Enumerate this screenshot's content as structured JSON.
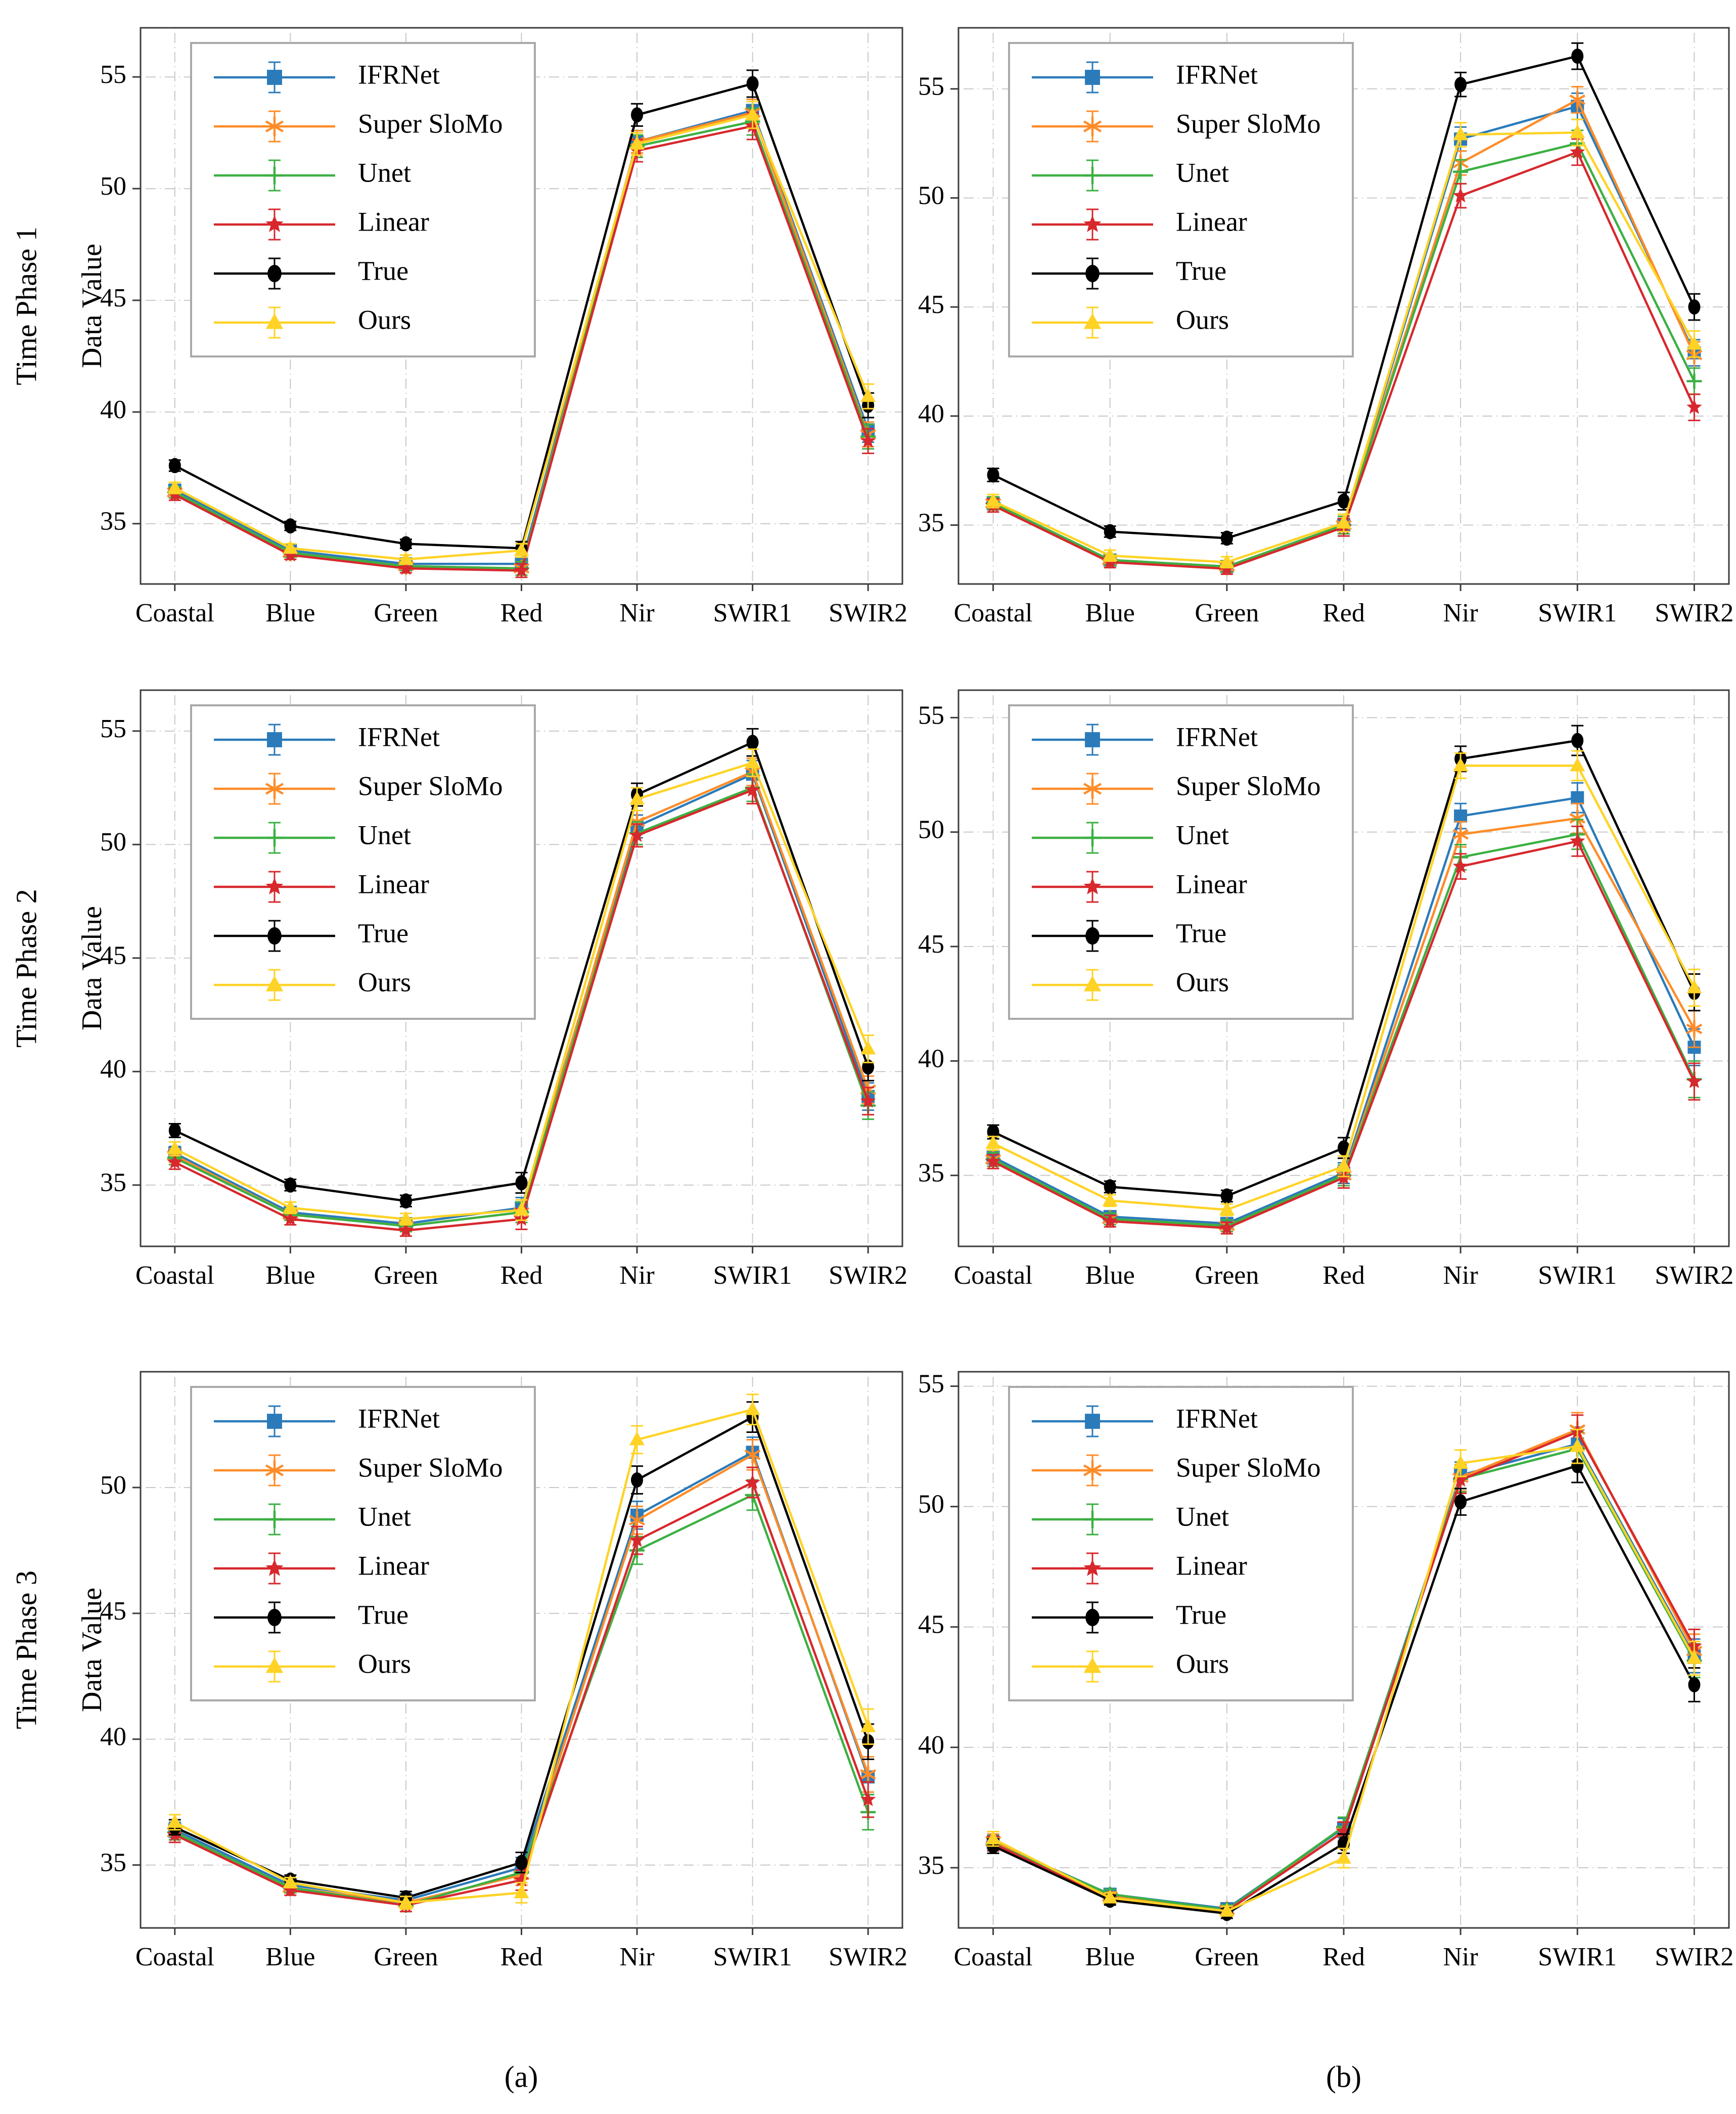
{
  "captions": {
    "a": "(a)",
    "b": "(b)"
  },
  "rows": [
    {
      "label": "Time Phase 1"
    },
    {
      "label": "Time Phase 2"
    },
    {
      "label": "Time Phase 3"
    }
  ],
  "series_meta": [
    {
      "name": "IFRNet",
      "color": "#2b7bba",
      "marker": "square"
    },
    {
      "name": "Super SloMo",
      "color": "#ff8c28",
      "marker": "asterisk"
    },
    {
      "name": "Unet",
      "color": "#3cb043",
      "marker": "plus"
    },
    {
      "name": "Linear",
      "color": "#d7282d",
      "marker": "star"
    },
    {
      "name": "True",
      "color": "#000000",
      "marker": "circle"
    },
    {
      "name": "Ours",
      "color": "#ffd325",
      "marker": "triangle"
    }
  ],
  "chart_data": [
    {
      "id": "a1",
      "type": "line",
      "row_label": "Time Phase 1",
      "column": "a",
      "ylabel": "Data Value",
      "categories": [
        "Coastal",
        "Blue",
        "Green",
        "Red",
        "Nir",
        "SWIR1",
        "SWIR2"
      ],
      "yticks": [
        35,
        40,
        45,
        50,
        55
      ],
      "ylim": [
        32.3,
        57.2
      ],
      "err": [
        0.25,
        0.2,
        0.2,
        0.3,
        0.5,
        0.6,
        0.55
      ],
      "series": [
        {
          "name": "IFRNet",
          "values": [
            36.5,
            33.8,
            33.2,
            33.2,
            52.1,
            53.5,
            39.2
          ]
        },
        {
          "name": "Super SloMo",
          "values": [
            36.4,
            33.7,
            33.1,
            33.0,
            52.1,
            53.4,
            39.0
          ]
        },
        {
          "name": "Unet",
          "values": [
            36.4,
            33.7,
            33.1,
            33.0,
            51.9,
            53.0,
            38.9
          ]
        },
        {
          "name": "Linear",
          "values": [
            36.3,
            33.6,
            33.0,
            32.9,
            51.7,
            52.8,
            38.7
          ]
        },
        {
          "name": "True",
          "values": [
            37.6,
            34.9,
            34.1,
            33.9,
            53.3,
            54.7,
            40.3
          ]
        },
        {
          "name": "Ours",
          "values": [
            36.6,
            33.9,
            33.4,
            33.8,
            52.0,
            53.3,
            40.7
          ]
        }
      ]
    },
    {
      "id": "b1",
      "type": "line",
      "row_label": "Time Phase 1",
      "column": "b",
      "ylabel": "",
      "categories": [
        "Coastal",
        "Blue",
        "Green",
        "Red",
        "Nir",
        "SWIR1",
        "SWIR2"
      ],
      "yticks": [
        35,
        40,
        45,
        50,
        55
      ],
      "ylim": [
        32.3,
        57.8
      ],
      "err": [
        0.3,
        0.25,
        0.25,
        0.4,
        0.55,
        0.6,
        0.6
      ],
      "series": [
        {
          "name": "IFRNet",
          "values": [
            36.0,
            33.4,
            33.1,
            35.0,
            52.7,
            54.2,
            42.9
          ]
        },
        {
          "name": "Super SloMo",
          "values": [
            36.0,
            33.4,
            33.1,
            35.0,
            51.6,
            54.5,
            42.8
          ]
        },
        {
          "name": "Unet",
          "values": [
            36.0,
            33.4,
            33.1,
            35.0,
            51.2,
            52.5,
            41.6
          ]
        },
        {
          "name": "Linear",
          "values": [
            35.9,
            33.3,
            33.0,
            34.9,
            50.1,
            52.1,
            40.4
          ]
        },
        {
          "name": "True",
          "values": [
            37.3,
            34.7,
            34.4,
            36.1,
            55.2,
            56.5,
            45.0
          ]
        },
        {
          "name": "Ours",
          "values": [
            36.1,
            33.6,
            33.3,
            35.1,
            52.9,
            53.0,
            43.3
          ]
        }
      ]
    },
    {
      "id": "a2",
      "type": "line",
      "row_label": "Time Phase 2",
      "column": "a",
      "ylabel": "Data Value",
      "categories": [
        "Coastal",
        "Blue",
        "Green",
        "Red",
        "Nir",
        "SWIR1",
        "SWIR2"
      ],
      "yticks": [
        35,
        40,
        45,
        50,
        55
      ],
      "ylim": [
        32.3,
        56.8
      ],
      "err": [
        0.3,
        0.25,
        0.25,
        0.45,
        0.5,
        0.6,
        0.6
      ],
      "series": [
        {
          "name": "IFRNet",
          "values": [
            36.4,
            33.8,
            33.3,
            34.0,
            50.8,
            53.1,
            38.9
          ]
        },
        {
          "name": "Super SloMo",
          "values": [
            36.3,
            33.7,
            33.2,
            33.8,
            51.0,
            53.2,
            39.2
          ]
        },
        {
          "name": "Unet",
          "values": [
            36.2,
            33.7,
            33.2,
            33.8,
            50.5,
            52.5,
            38.5
          ]
        },
        {
          "name": "Linear",
          "values": [
            36.0,
            33.5,
            33.0,
            33.5,
            50.4,
            52.4,
            38.7
          ]
        },
        {
          "name": "True",
          "values": [
            37.4,
            35.0,
            34.3,
            35.1,
            52.2,
            54.5,
            40.2
          ]
        },
        {
          "name": "Ours",
          "values": [
            36.6,
            34.0,
            33.5,
            33.9,
            52.0,
            53.6,
            41.0
          ]
        }
      ]
    },
    {
      "id": "b2",
      "type": "line",
      "row_label": "Time Phase 2",
      "column": "b",
      "ylabel": "",
      "categories": [
        "Coastal",
        "Blue",
        "Green",
        "Red",
        "Nir",
        "SWIR1",
        "SWIR2"
      ],
      "yticks": [
        35,
        40,
        45,
        50,
        55
      ],
      "ylim": [
        31.9,
        56.2
      ],
      "err": [
        0.3,
        0.25,
        0.25,
        0.45,
        0.55,
        0.65,
        0.8
      ],
      "series": [
        {
          "name": "IFRNet",
          "values": [
            35.8,
            33.2,
            32.9,
            35.1,
            50.7,
            51.5,
            40.6
          ]
        },
        {
          "name": "Super SloMo",
          "values": [
            35.7,
            33.1,
            32.8,
            35.0,
            49.9,
            50.6,
            41.4
          ]
        },
        {
          "name": "Unet",
          "values": [
            35.7,
            33.1,
            32.8,
            35.0,
            48.9,
            49.9,
            39.2
          ]
        },
        {
          "name": "Linear",
          "values": [
            35.6,
            33.0,
            32.7,
            34.9,
            48.5,
            49.6,
            39.1
          ]
        },
        {
          "name": "True",
          "values": [
            36.9,
            34.5,
            34.1,
            36.2,
            53.2,
            54.0,
            43.0
          ]
        },
        {
          "name": "Ours",
          "values": [
            36.4,
            33.9,
            33.5,
            35.4,
            52.9,
            52.9,
            43.2
          ]
        }
      ]
    },
    {
      "id": "a3",
      "type": "line",
      "row_label": "Time Phase 3",
      "column": "a",
      "ylabel": "Data Value",
      "categories": [
        "Coastal",
        "Blue",
        "Green",
        "Red",
        "Nir",
        "SWIR1",
        "SWIR2"
      ],
      "yticks": [
        35,
        40,
        45,
        50
      ],
      "ylim": [
        32.5,
        54.6
      ],
      "err": [
        0.3,
        0.2,
        0.25,
        0.4,
        0.55,
        0.6,
        0.7
      ],
      "series": [
        {
          "name": "IFRNet",
          "values": [
            36.4,
            34.2,
            33.6,
            34.9,
            48.9,
            51.4,
            38.5
          ]
        },
        {
          "name": "Super SloMo",
          "values": [
            36.3,
            34.1,
            33.5,
            34.6,
            48.7,
            51.3,
            38.6
          ]
        },
        {
          "name": "Unet",
          "values": [
            36.3,
            34.1,
            33.4,
            34.7,
            47.5,
            49.7,
            37.1
          ]
        },
        {
          "name": "Linear",
          "values": [
            36.2,
            34.0,
            33.4,
            34.4,
            47.9,
            50.2,
            37.6
          ]
        },
        {
          "name": "True",
          "values": [
            36.5,
            34.4,
            33.7,
            35.1,
            50.3,
            52.8,
            39.9
          ]
        },
        {
          "name": "Ours",
          "values": [
            36.7,
            34.3,
            33.5,
            33.9,
            51.9,
            53.1,
            40.5
          ]
        }
      ]
    },
    {
      "id": "b3",
      "type": "line",
      "row_label": "Time Phase 3",
      "column": "b",
      "ylabel": "",
      "categories": [
        "Coastal",
        "Blue",
        "Green",
        "Red",
        "Nir",
        "SWIR1",
        "SWIR2"
      ],
      "yticks": [
        35,
        40,
        45,
        50,
        55
      ],
      "ylim": [
        32.5,
        55.6
      ],
      "err": [
        0.3,
        0.2,
        0.2,
        0.4,
        0.55,
        0.7,
        0.7
      ],
      "series": [
        {
          "name": "IFRNet",
          "values": [
            36.05,
            33.9,
            33.3,
            36.65,
            51.3,
            52.6,
            43.8
          ]
        },
        {
          "name": "Super SloMo",
          "values": [
            36.1,
            33.8,
            33.25,
            36.5,
            51.2,
            53.2,
            44.0
          ]
        },
        {
          "name": "Unet",
          "values": [
            36.0,
            33.9,
            33.25,
            36.7,
            51.15,
            52.4,
            43.6
          ]
        },
        {
          "name": "Linear",
          "values": [
            36.0,
            33.7,
            33.2,
            36.5,
            51.1,
            53.1,
            44.2
          ]
        },
        {
          "name": "True",
          "values": [
            35.9,
            33.65,
            33.1,
            36.0,
            50.2,
            51.7,
            42.6
          ]
        },
        {
          "name": "Ours",
          "values": [
            36.2,
            33.75,
            33.2,
            35.4,
            51.8,
            52.5,
            43.7
          ]
        }
      ]
    }
  ]
}
